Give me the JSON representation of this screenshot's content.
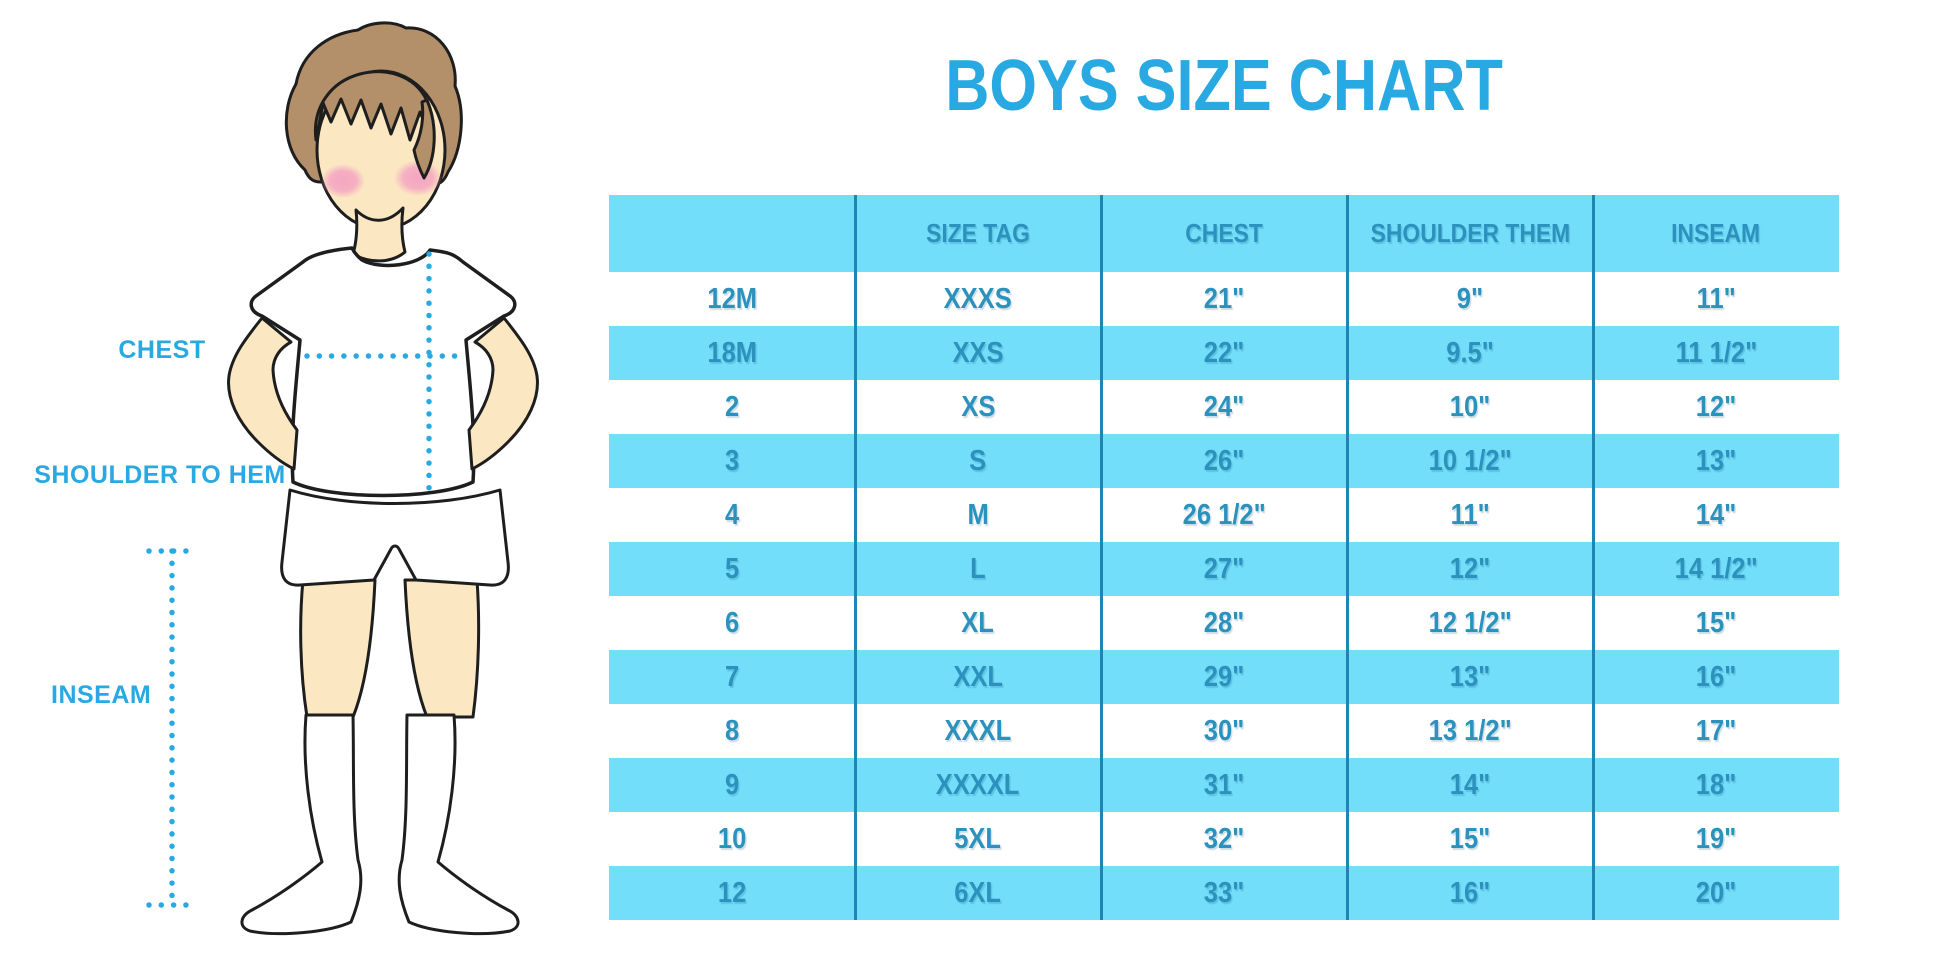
{
  "title": "BOYS SIZE CHART",
  "illustration": {
    "labels": {
      "chest": "CHEST",
      "shoulder_to_hem": "SHOULDER TO HEM",
      "inseam": "INSEAM"
    }
  },
  "table": {
    "columns": [
      "",
      "SIZE TAG",
      "CHEST",
      "SHOULDER THEM",
      "INSEAM"
    ],
    "rows": [
      [
        "12M",
        "XXXS",
        "21\"",
        "9\"",
        "11\""
      ],
      [
        "18M",
        "XXS",
        "22\"",
        "9.5\"",
        "11 1/2\""
      ],
      [
        "2",
        "XS",
        "24\"",
        "10\"",
        "12\""
      ],
      [
        "3",
        "S",
        "26\"",
        "10 1/2\"",
        "13\""
      ],
      [
        "4",
        "M",
        "26 1/2\"",
        "11\"",
        "14\""
      ],
      [
        "5",
        "L",
        "27\"",
        "12\"",
        "14 1/2\""
      ],
      [
        "6",
        "XL",
        "28\"",
        "12 1/2\"",
        "15\""
      ],
      [
        "7",
        "XXL",
        "29\"",
        "13\"",
        "16\""
      ],
      [
        "8",
        "XXXL",
        "30\"",
        "13 1/2\"",
        "17\""
      ],
      [
        "9",
        "XXXXL",
        "31\"",
        "14\"",
        "18\""
      ],
      [
        "10",
        "5XL",
        "32\"",
        "15\"",
        "19\""
      ],
      [
        "12",
        "6XL",
        "33\"",
        "16\"",
        "20\""
      ]
    ]
  },
  "chart_data": {
    "type": "table",
    "title": "BOYS SIZE CHART",
    "columns": [
      "",
      "SIZE TAG",
      "CHEST",
      "SHOULDER THEM",
      "INSEAM"
    ],
    "rows": [
      [
        "12M",
        "XXXS",
        "21\"",
        "9\"",
        "11\""
      ],
      [
        "18M",
        "XXS",
        "22\"",
        "9.5\"",
        "11 1/2\""
      ],
      [
        "2",
        "XS",
        "24\"",
        "10\"",
        "12\""
      ],
      [
        "3",
        "S",
        "26\"",
        "10 1/2\"",
        "13\""
      ],
      [
        "4",
        "M",
        "26 1/2\"",
        "11\"",
        "14\""
      ],
      [
        "5",
        "L",
        "27\"",
        "12\"",
        "14 1/2\""
      ],
      [
        "6",
        "XL",
        "28\"",
        "12 1/2\"",
        "15\""
      ],
      [
        "7",
        "XXL",
        "29\"",
        "13\"",
        "16\""
      ],
      [
        "8",
        "XXXL",
        "30\"",
        "13 1/2\"",
        "17\""
      ],
      [
        "9",
        "XXXXL",
        "31\"",
        "14\"",
        "18\""
      ],
      [
        "10",
        "5XL",
        "32\"",
        "15\"",
        "19\""
      ],
      [
        "12",
        "6XL",
        "33\"",
        "16\"",
        "20\""
      ]
    ]
  },
  "colors": {
    "accent": "#29A9E1",
    "row_band": "#73DEFA",
    "table_text": "#2B92BE",
    "column_divider": "#1C86B5",
    "hair": "#B39069",
    "skin": "#FBE7C1",
    "blush": "#F4A6C2",
    "outline": "#1E1E1E"
  }
}
